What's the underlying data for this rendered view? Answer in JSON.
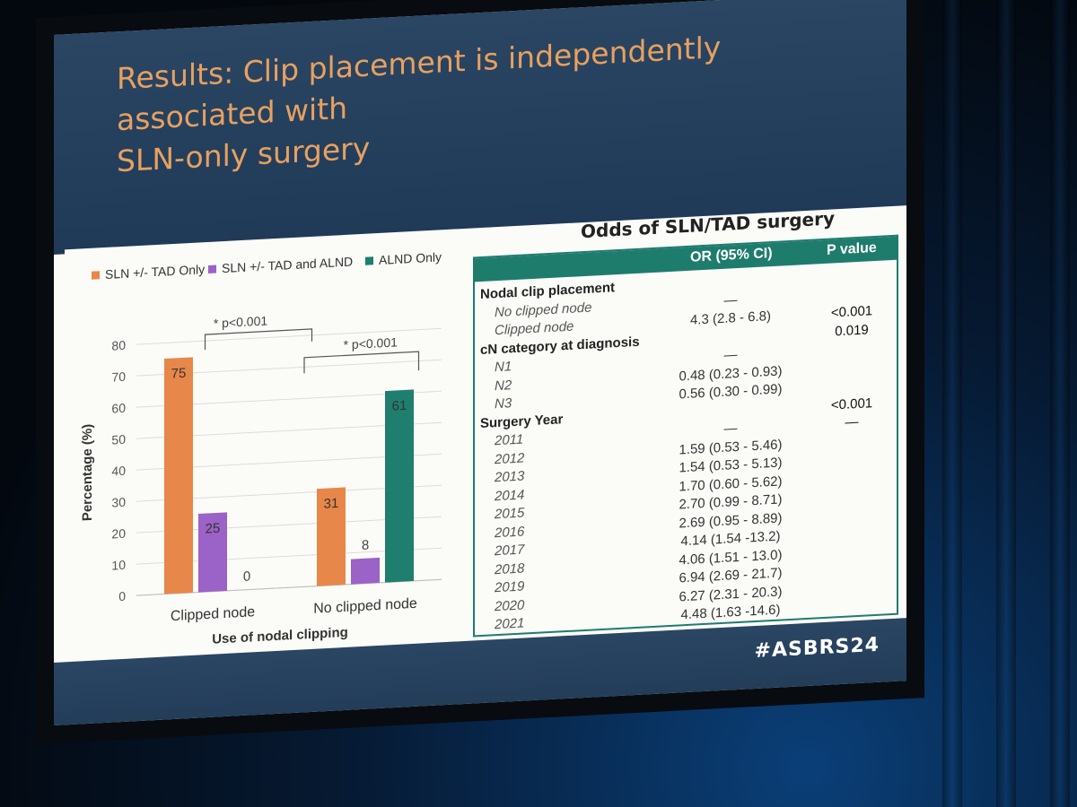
{
  "slide": {
    "title_line1": "Results: Clip placement is independently associated with",
    "title_line2": "SLN-only surgery",
    "hashtag": "#ASBRS24"
  },
  "legend": [
    {
      "label": "SLN +/- TAD Only",
      "color": "#e8874a"
    },
    {
      "label": "SLN +/- TAD and ALND",
      "color": "#9b62c8"
    },
    {
      "label": "ALND Only",
      "color": "#1f7f6e"
    }
  ],
  "chart_data": {
    "type": "bar",
    "categories": [
      "Clipped node",
      "No clipped node"
    ],
    "series": [
      {
        "name": "SLN +/- TAD Only",
        "values": [
          75,
          31
        ]
      },
      {
        "name": "SLN +/- TAD and ALND",
        "values": [
          25,
          8
        ]
      },
      {
        "name": "ALND Only",
        "values": [
          0,
          61
        ]
      }
    ],
    "data_labels": [
      [
        "75",
        "25",
        "0"
      ],
      [
        "31",
        "8",
        "61"
      ]
    ],
    "xlabel": "Use of nodal clipping",
    "ylabel": "Percentage (%)",
    "ylim": [
      0,
      80
    ],
    "yticks": [
      0,
      10,
      20,
      30,
      40,
      50,
      60,
      70,
      80
    ],
    "grid": true,
    "legend_position": "top",
    "annotations": [
      "* p<0.001",
      "* p<0.001"
    ]
  },
  "odds_table": {
    "title": "Odds of SLN/TAD surgery",
    "col_or": "OR (95% CI)",
    "col_p": "P value",
    "rows": [
      {
        "label": "Nodal clip placement",
        "kind": "group",
        "or": "",
        "p": ""
      },
      {
        "label": "No clipped node",
        "kind": "level",
        "or": "—",
        "p": ""
      },
      {
        "label": "Clipped node",
        "kind": "level",
        "or": "4.3 (2.8 - 6.8)",
        "p": "<0.001"
      },
      {
        "label": "cN category at diagnosis",
        "kind": "group",
        "or": "",
        "p": "0.019"
      },
      {
        "label": "N1",
        "kind": "level",
        "or": "—",
        "p": ""
      },
      {
        "label": "N2",
        "kind": "level",
        "or": "0.48 (0.23 - 0.93)",
        "p": ""
      },
      {
        "label": "N3",
        "kind": "level",
        "or": "0.56 (0.30 - 0.99)",
        "p": ""
      },
      {
        "label": "Surgery Year",
        "kind": "group",
        "or": "",
        "p": "<0.001"
      },
      {
        "label": "2011",
        "kind": "level",
        "or": "—",
        "p": "—"
      },
      {
        "label": "2012",
        "kind": "level",
        "or": "1.59 (0.53 - 5.46)",
        "p": ""
      },
      {
        "label": "2013",
        "kind": "level",
        "or": "1.54 (0.53 - 5.13)",
        "p": ""
      },
      {
        "label": "2014",
        "kind": "level",
        "or": "1.70 (0.60 - 5.62)",
        "p": ""
      },
      {
        "label": "2015",
        "kind": "level",
        "or": "2.70 (0.99 - 8.71)",
        "p": ""
      },
      {
        "label": "2016",
        "kind": "level",
        "or": "2.69 (0.95 - 8.89)",
        "p": ""
      },
      {
        "label": "2017",
        "kind": "level",
        "or": "4.14 (1.54 -13.2)",
        "p": ""
      },
      {
        "label": "2018",
        "kind": "level",
        "or": "4.06 (1.51 - 13.0)",
        "p": ""
      },
      {
        "label": "2019",
        "kind": "level",
        "or": "6.94 (2.69 - 21.7)",
        "p": ""
      },
      {
        "label": "2020",
        "kind": "level",
        "or": "6.27 (2.31 - 20.3)",
        "p": ""
      },
      {
        "label": "2021",
        "kind": "level",
        "or": "4.48 (1.63 -14.6)",
        "p": ""
      }
    ]
  }
}
